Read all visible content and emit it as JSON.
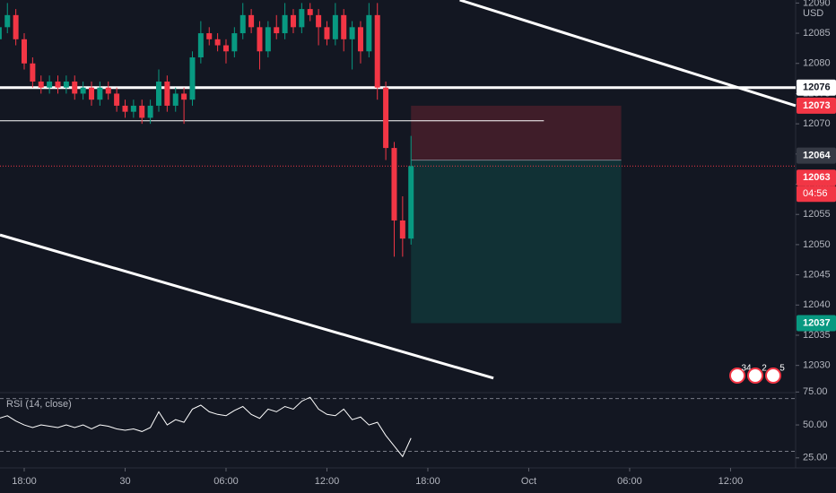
{
  "chart_data": {
    "type": "candlestick",
    "currency": "USD",
    "x": [
      -1.5,
      -1,
      -0.5,
      0,
      0.5,
      1,
      1.5,
      2,
      2.5,
      3,
      3.5,
      4,
      4.5,
      5,
      5.5,
      6,
      6.5,
      7,
      7.5,
      8,
      8.5,
      9,
      9.5,
      10,
      10.5,
      11,
      11.5,
      12,
      12.5,
      13,
      13.5,
      14,
      14.5,
      15,
      15.5,
      16,
      16.5,
      17,
      17.5,
      18,
      18.5,
      19,
      19.5,
      20,
      20.5,
      21,
      21.5,
      22,
      22.5,
      23
    ],
    "open": [
      12084,
      12086,
      12088,
      12084,
      12080,
      12077,
      12076,
      12077,
      12076,
      12077,
      12075,
      12076,
      12074,
      12076,
      12075,
      12073,
      12072,
      12073,
      12071,
      12073,
      12077,
      12073,
      12075,
      12074,
      12081,
      12085,
      12084,
      12083,
      12082,
      12085,
      12088,
      12086,
      12082,
      12086,
      12085,
      12088,
      12086,
      12089,
      12088,
      12086,
      12084,
      12088,
      12084,
      12086,
      12082,
      12088,
      12076,
      12066,
      12054,
      12051
    ],
    "high": [
      12088,
      12090,
      12089,
      12085,
      12081,
      12078,
      12078,
      12078,
      12078,
      12078,
      12077,
      12077,
      12077,
      12077,
      12076,
      12074,
      12074,
      12074,
      12074,
      12079,
      12078,
      12076,
      12076,
      12082,
      12087,
      12086,
      12085,
      12084,
      12086,
      12090,
      12089,
      12087,
      12087,
      12088,
      12090,
      12089,
      12090,
      12090,
      12089,
      12087,
      12090,
      12089,
      12087,
      12087,
      12090,
      12090,
      12077,
      12067,
      12058,
      12068
    ],
    "low": [
      12083,
      12085,
      12083,
      12079,
      12076,
      12075,
      12075,
      12075,
      12075,
      12074,
      12074,
      12073,
      12073,
      12074,
      12072,
      12071,
      12071,
      12070,
      12070,
      12072,
      12072,
      12072,
      12070,
      12073,
      12080,
      12083,
      12082,
      12080,
      12081,
      12084,
      12085,
      12079,
      12081,
      12084,
      12084,
      12085,
      12085,
      12087,
      12083,
      12083,
      12083,
      12082,
      12079,
      12080,
      12081,
      12074,
      12064,
      12048,
      12048,
      12050
    ],
    "close": [
      12086,
      12088,
      12084,
      12080,
      12077,
      12076,
      12077,
      12076,
      12077,
      12075,
      12076,
      12074,
      12076,
      12075,
      12073,
      12072,
      12073,
      12071,
      12073,
      12077,
      12073,
      12075,
      12074,
      12081,
      12085,
      12084,
      12083,
      12082,
      12085,
      12088,
      12086,
      12082,
      12086,
      12085,
      12088,
      12086,
      12089,
      12088,
      12086,
      12084,
      12088,
      12084,
      12086,
      12082,
      12088,
      12076,
      12066,
      12054,
      12051,
      12063
    ],
    "up_color": "#089981",
    "down_color": "#f23645",
    "xlim": [
      -1.44,
      45.87
    ],
    "xticks": [
      {
        "value": 0,
        "label": "18:00"
      },
      {
        "value": 6,
        "label": "30"
      },
      {
        "value": 12,
        "label": "06:00"
      },
      {
        "value": 18,
        "label": "12:00"
      },
      {
        "value": 24,
        "label": "18:00"
      },
      {
        "value": 30,
        "label": "Oct"
      },
      {
        "value": 36,
        "label": "06:00"
      },
      {
        "value": 42,
        "label": "12:00"
      }
    ],
    "ylim": [
      12025.5,
      12090.5
    ],
    "yticks": [
      12030,
      12035,
      12040,
      12045,
      12050,
      12055,
      12060,
      12065,
      12070,
      12075,
      12080,
      12085,
      12090
    ],
    "support_line": 12076,
    "thin_line": {
      "value": 12070.5,
      "end": 30.9
    },
    "trendlines": [
      {
        "x": [
          25.9,
          45.87
        ],
        "y": [
          12090.5,
          12073
        ]
      },
      {
        "x": [
          -1.44,
          27.9
        ],
        "y": [
          12051.6,
          12027.9
        ]
      }
    ],
    "position": {
      "stop": 12073,
      "entry": 12064,
      "target": 12037,
      "start": 23,
      "end": 35.5
    },
    "last_price": 12063,
    "countdown": "04:56",
    "event_badges": [
      "34",
      "2",
      "5"
    ],
    "rsi": {
      "title": "RSI (14, close)",
      "color": "#ffffff",
      "values": [
        55,
        57,
        53,
        50,
        48,
        50,
        49,
        48,
        50,
        48,
        50,
        47,
        50,
        49,
        47,
        46,
        47,
        45,
        48,
        60,
        50,
        54,
        52,
        62,
        65,
        60,
        58,
        57,
        61,
        64,
        58,
        55,
        62,
        60,
        64,
        62,
        68,
        71,
        62,
        58,
        57,
        62,
        54,
        56,
        50,
        52,
        42,
        34,
        26,
        40
      ],
      "ylim": [
        16.7,
        75.9
      ],
      "yticks": [
        {
          "value": 25,
          "label": "25.00"
        },
        {
          "value": 50,
          "label": "50.00"
        },
        {
          "value": 75,
          "label": "75.00"
        }
      ],
      "levels": [
        30,
        70
      ]
    }
  }
}
